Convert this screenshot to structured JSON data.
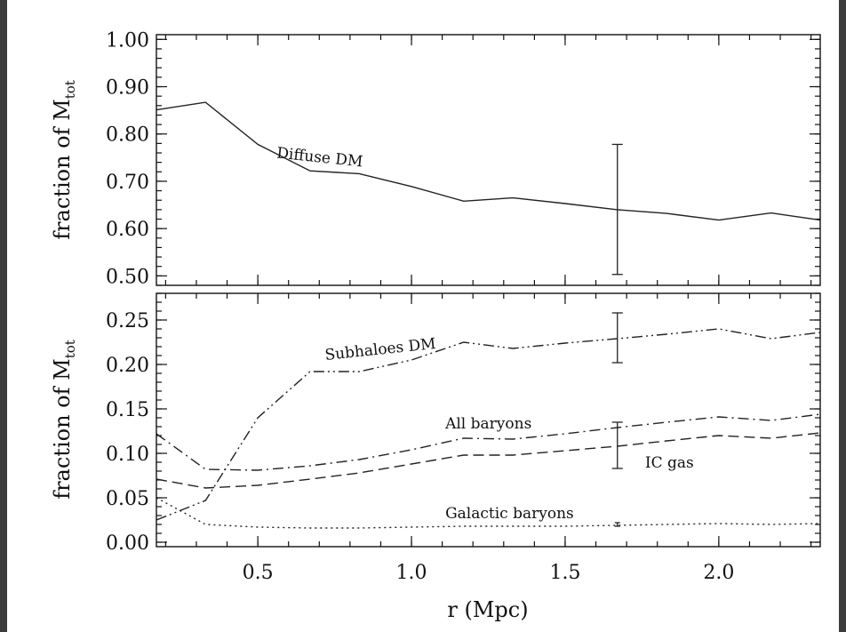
{
  "chart_data": [
    {
      "type": "line",
      "panel": "top",
      "ylabel": "fraction of M",
      "ylabel_subscript": "tot",
      "xlim": [
        0.17,
        2.33
      ],
      "ylim": [
        0.48,
        1.01
      ],
      "yticks": [
        0.5,
        0.6,
        0.7,
        0.8,
        0.9,
        1.0
      ],
      "ytick_labels": [
        "0.50",
        "0.60",
        "0.70",
        "0.80",
        "0.90",
        "1.00"
      ],
      "xticks": [
        0.5,
        1.0,
        1.5,
        2.0
      ],
      "series": [
        {
          "name": "Diffuse DM",
          "style": "solid",
          "x": [
            0.17,
            0.33,
            0.5,
            0.67,
            0.83,
            1.0,
            1.17,
            1.33,
            1.5,
            1.67,
            1.83,
            2.0,
            2.17,
            2.33
          ],
          "y": [
            0.851,
            0.867,
            0.778,
            0.722,
            0.716,
            0.689,
            0.658,
            0.665,
            0.653,
            0.64,
            0.632,
            0.618,
            0.633,
            0.618
          ]
        }
      ],
      "error_bars": [
        {
          "x": 1.67,
          "y_low": 0.503,
          "y_high": 0.778,
          "cap": "medium"
        }
      ],
      "annotations": [
        {
          "text": "Diffuse DM",
          "x": 0.56,
          "y": 0.75,
          "rotation": 6
        }
      ]
    },
    {
      "type": "line",
      "panel": "bottom",
      "xlabel": "r (Mpc)",
      "ylabel": "fraction of M",
      "ylabel_subscript": "tot",
      "xlim": [
        0.17,
        2.33
      ],
      "ylim": [
        -0.005,
        0.28
      ],
      "yticks": [
        0.0,
        0.05,
        0.1,
        0.15,
        0.2,
        0.25
      ],
      "ytick_labels": [
        "0.00",
        "0.05",
        "0.10",
        "0.15",
        "0.20",
        "0.25"
      ],
      "xticks": [
        0.5,
        1.0,
        1.5,
        2.0
      ],
      "xtick_labels": [
        "0.5",
        "1.0",
        "1.5",
        "2.0"
      ],
      "series": [
        {
          "name": "Subhaloes DM",
          "style": "dash-dot-dot",
          "x": [
            0.17,
            0.33,
            0.5,
            0.67,
            0.83,
            1.0,
            1.17,
            1.33,
            1.5,
            1.67,
            1.83,
            2.0,
            2.17,
            2.33
          ],
          "y": [
            0.025,
            0.047,
            0.14,
            0.192,
            0.192,
            0.205,
            0.225,
            0.218,
            0.224,
            0.229,
            0.234,
            0.24,
            0.229,
            0.236
          ]
        },
        {
          "name": "All baryons",
          "style": "dash-dot",
          "x": [
            0.17,
            0.33,
            0.5,
            0.67,
            0.83,
            1.0,
            1.17,
            1.33,
            1.5,
            1.67,
            1.83,
            2.0,
            2.17,
            2.33
          ],
          "y": [
            0.122,
            0.082,
            0.081,
            0.086,
            0.093,
            0.104,
            0.117,
            0.116,
            0.122,
            0.129,
            0.135,
            0.141,
            0.137,
            0.144
          ]
        },
        {
          "name": "IC gas",
          "style": "dashed",
          "x": [
            0.17,
            0.33,
            0.5,
            0.67,
            0.83,
            1.0,
            1.17,
            1.33,
            1.5,
            1.67,
            1.83,
            2.0,
            2.17,
            2.33
          ],
          "y": [
            0.071,
            0.061,
            0.064,
            0.071,
            0.078,
            0.088,
            0.098,
            0.098,
            0.103,
            0.108,
            0.114,
            0.12,
            0.117,
            0.123
          ]
        },
        {
          "name": "Galactic baryons",
          "style": "dotted",
          "x": [
            0.17,
            0.33,
            0.5,
            0.67,
            0.83,
            1.0,
            1.17,
            1.33,
            1.5,
            1.67,
            1.83,
            2.0,
            2.17,
            2.33
          ],
          "y": [
            0.05,
            0.02,
            0.017,
            0.016,
            0.016,
            0.017,
            0.018,
            0.018,
            0.018,
            0.019,
            0.02,
            0.021,
            0.02,
            0.021
          ]
        }
      ],
      "error_bars": [
        {
          "x": 1.67,
          "y_low": 0.202,
          "y_high": 0.258,
          "cap": "small"
        },
        {
          "x": 1.67,
          "y_low": 0.083,
          "y_high": 0.135,
          "cap": "small"
        },
        {
          "x": 1.67,
          "y_low": 0.018,
          "y_high": 0.022,
          "cap": "tiny"
        }
      ],
      "annotations": [
        {
          "text": "Subhaloes DM",
          "x": 0.72,
          "y": 0.205,
          "rotation": -6
        },
        {
          "text": "All baryons",
          "x": 1.11,
          "y": 0.128,
          "rotation": 0
        },
        {
          "text": "IC gas",
          "x": 1.76,
          "y": 0.084,
          "rotation": 0
        },
        {
          "text": "Galactic baryons",
          "x": 1.11,
          "y": 0.027,
          "rotation": 0
        }
      ]
    }
  ]
}
